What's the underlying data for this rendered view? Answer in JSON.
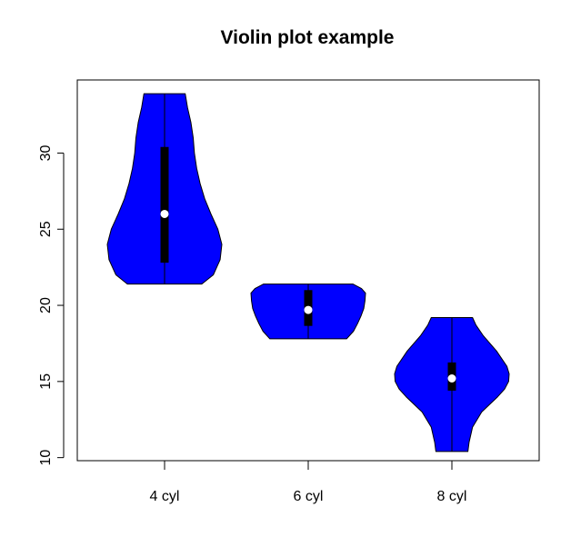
{
  "chart_data": {
    "type": "violin",
    "title": "Violin plot example",
    "xlabel": "",
    "ylabel": "",
    "ylim": [
      9.8,
      34.8
    ],
    "yticks": [
      10,
      15,
      20,
      25,
      30
    ],
    "grid": false,
    "legend": "none",
    "fill_color": "#0000ff",
    "categories": [
      "4 cyl",
      "6 cyl",
      "8 cyl"
    ],
    "groups": [
      {
        "label": "4 cyl",
        "min": 21.4,
        "q1": 22.8,
        "median": 26.0,
        "q3": 30.4,
        "max": 33.9,
        "density": [
          [
            21.4,
            0.65
          ],
          [
            22.0,
            0.85
          ],
          [
            23.0,
            0.97
          ],
          [
            24.0,
            1.0
          ],
          [
            25.0,
            0.93
          ],
          [
            26.0,
            0.81
          ],
          [
            27.0,
            0.7
          ],
          [
            28.0,
            0.62
          ],
          [
            29.0,
            0.56
          ],
          [
            30.0,
            0.52
          ],
          [
            31.0,
            0.5
          ],
          [
            32.0,
            0.46
          ],
          [
            33.0,
            0.4
          ],
          [
            33.9,
            0.36
          ]
        ]
      },
      {
        "label": "6 cyl",
        "min": 17.8,
        "q1": 18.65,
        "median": 19.7,
        "q3": 21.0,
        "max": 21.4,
        "density": [
          [
            17.8,
            0.67
          ],
          [
            18.3,
            0.79
          ],
          [
            18.8,
            0.86
          ],
          [
            19.3,
            0.92
          ],
          [
            19.8,
            0.97
          ],
          [
            20.3,
            0.99
          ],
          [
            20.8,
            1.0
          ],
          [
            21.1,
            0.93
          ],
          [
            21.4,
            0.78
          ]
        ]
      },
      {
        "label": "8 cyl",
        "min": 10.4,
        "q1": 14.4,
        "median": 15.2,
        "q3": 16.25,
        "max": 19.2,
        "density": [
          [
            10.4,
            0.28
          ],
          [
            11.0,
            0.3
          ],
          [
            12.0,
            0.36
          ],
          [
            13.0,
            0.52
          ],
          [
            14.0,
            0.8
          ],
          [
            14.5,
            0.92
          ],
          [
            15.0,
            0.99
          ],
          [
            15.5,
            1.0
          ],
          [
            16.0,
            0.96
          ],
          [
            17.0,
            0.78
          ],
          [
            18.0,
            0.55
          ],
          [
            18.7,
            0.42
          ],
          [
            19.2,
            0.36
          ]
        ]
      }
    ]
  }
}
